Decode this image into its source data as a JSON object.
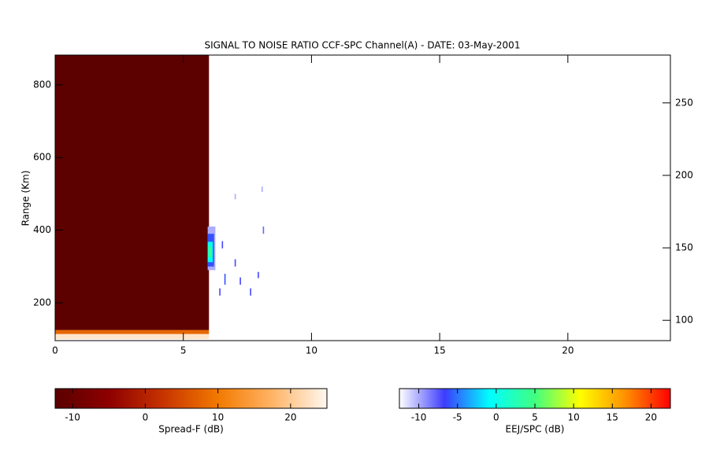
{
  "chart_data": {
    "type": "heatmap",
    "title": "SIGNAL TO NOISE RATIO CCF-SPC Channel(A) - DATE: 03-May-2001",
    "ylabel": "Range (Km)",
    "xlim": [
      0,
      24
    ],
    "xticks": [
      0,
      5,
      10,
      15,
      20
    ],
    "ylim": [
      96,
      882
    ],
    "yticks": [
      200,
      400,
      600,
      800
    ],
    "y2lim": [
      86,
      283
    ],
    "y2ticks": [
      100,
      150,
      200,
      250
    ],
    "layers": [
      {
        "name": "Spread-F (dB)",
        "clim": [
          -12.4,
          25
        ],
        "ticks": [
          -10,
          0,
          10,
          20
        ],
        "colormap": [
          "#5a0000",
          "#8e0000",
          "#c83400",
          "#f27a00",
          "#ffb466",
          "#fff8f0"
        ],
        "cells": [
          {
            "x": [
              0,
              6
            ],
            "y": [
              125,
              882
            ],
            "value": -12
          },
          {
            "x": [
              0,
              6
            ],
            "y": [
              114,
              125
            ],
            "value": 8
          },
          {
            "x": [
              0,
              6
            ],
            "y": [
              100,
              114
            ],
            "value": 23
          }
        ]
      },
      {
        "name": "EEJ/SPC (dB)",
        "clim": [
          -12.5,
          22.5
        ],
        "ticks": [
          -10,
          -5,
          0,
          5,
          10,
          15,
          20
        ],
        "colormap": [
          "#ffffff",
          "#3c3cff",
          "#00ffff",
          "#40ff80",
          "#ffff00",
          "#ff9000",
          "#ff0000"
        ],
        "cells": [
          {
            "x": [
              5.95,
              6.25
            ],
            "y": [
              290,
              410
            ],
            "value": -10
          },
          {
            "x": [
              5.95,
              6.2
            ],
            "y": [
              300,
              390
            ],
            "value": -6
          },
          {
            "x": [
              5.95,
              6.15
            ],
            "y": [
              312,
              368
            ],
            "value": 0
          },
          {
            "x": [
              5.98,
              6.1
            ],
            "y": [
              325,
              355
            ],
            "value": 4
          },
          {
            "x": [
              6.4,
              6.45
            ],
            "y": [
              220,
              240
            ],
            "value": -7
          },
          {
            "x": [
              6.6,
              6.65
            ],
            "y": [
              250,
              280
            ],
            "value": -6
          },
          {
            "x": [
              6.5,
              6.55
            ],
            "y": [
              350,
              370
            ],
            "value": -7
          },
          {
            "x": [
              7.0,
              7.05
            ],
            "y": [
              300,
              320
            ],
            "value": -7
          },
          {
            "x": [
              7.2,
              7.25
            ],
            "y": [
              250,
              270
            ],
            "value": -7
          },
          {
            "x": [
              7.6,
              7.65
            ],
            "y": [
              220,
              240
            ],
            "value": -7
          },
          {
            "x": [
              7.9,
              7.95
            ],
            "y": [
              268,
              285
            ],
            "value": -7
          },
          {
            "x": [
              8.1,
              8.15
            ],
            "y": [
              390,
              410
            ],
            "value": -8
          },
          {
            "x": [
              7.0,
              7.05
            ],
            "y": [
              485,
              500
            ],
            "value": -10
          },
          {
            "x": [
              8.05,
              8.1
            ],
            "y": [
              505,
              520
            ],
            "value": -10
          }
        ]
      }
    ]
  }
}
